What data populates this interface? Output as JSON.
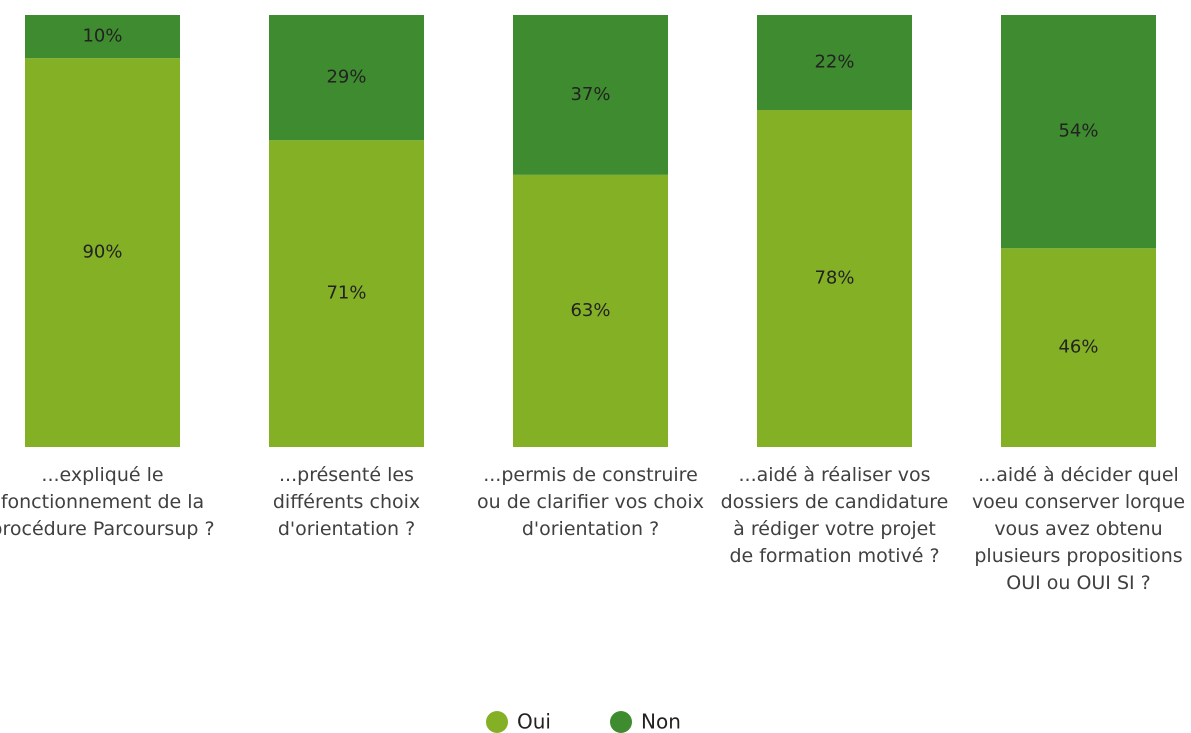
{
  "chart_data": {
    "type": "stacked_bar",
    "categories": [
      "...expliqué le fonctionnement de la procédure Parcoursup ?",
      "...présenté les différents choix d'orientation ?",
      "...permis de construire ou de clarifier vos choix d'orientation ?",
      "...aidé à réaliser vos dossiers de candidature à rédiger votre projet de formation motivé ?",
      "...aidé à décider quel voeu conserver lorque vous avez obtenu plusieurs propositions OUI ou OUI SI ?"
    ],
    "series": [
      {
        "name": "Oui",
        "color": "#84b026",
        "values": [
          90,
          71,
          63,
          78,
          46
        ],
        "value_labels": [
          "90%",
          "71%",
          "63%",
          "78%",
          "46%"
        ]
      },
      {
        "name": "Non",
        "color": "#3f8b2f",
        "values": [
          10,
          29,
          37,
          22,
          54
        ],
        "value_labels": [
          "10%",
          "29%",
          "37%",
          "22%",
          "54%"
        ]
      }
    ],
    "ylim": [
      0,
      100
    ],
    "legend": "bottom"
  }
}
